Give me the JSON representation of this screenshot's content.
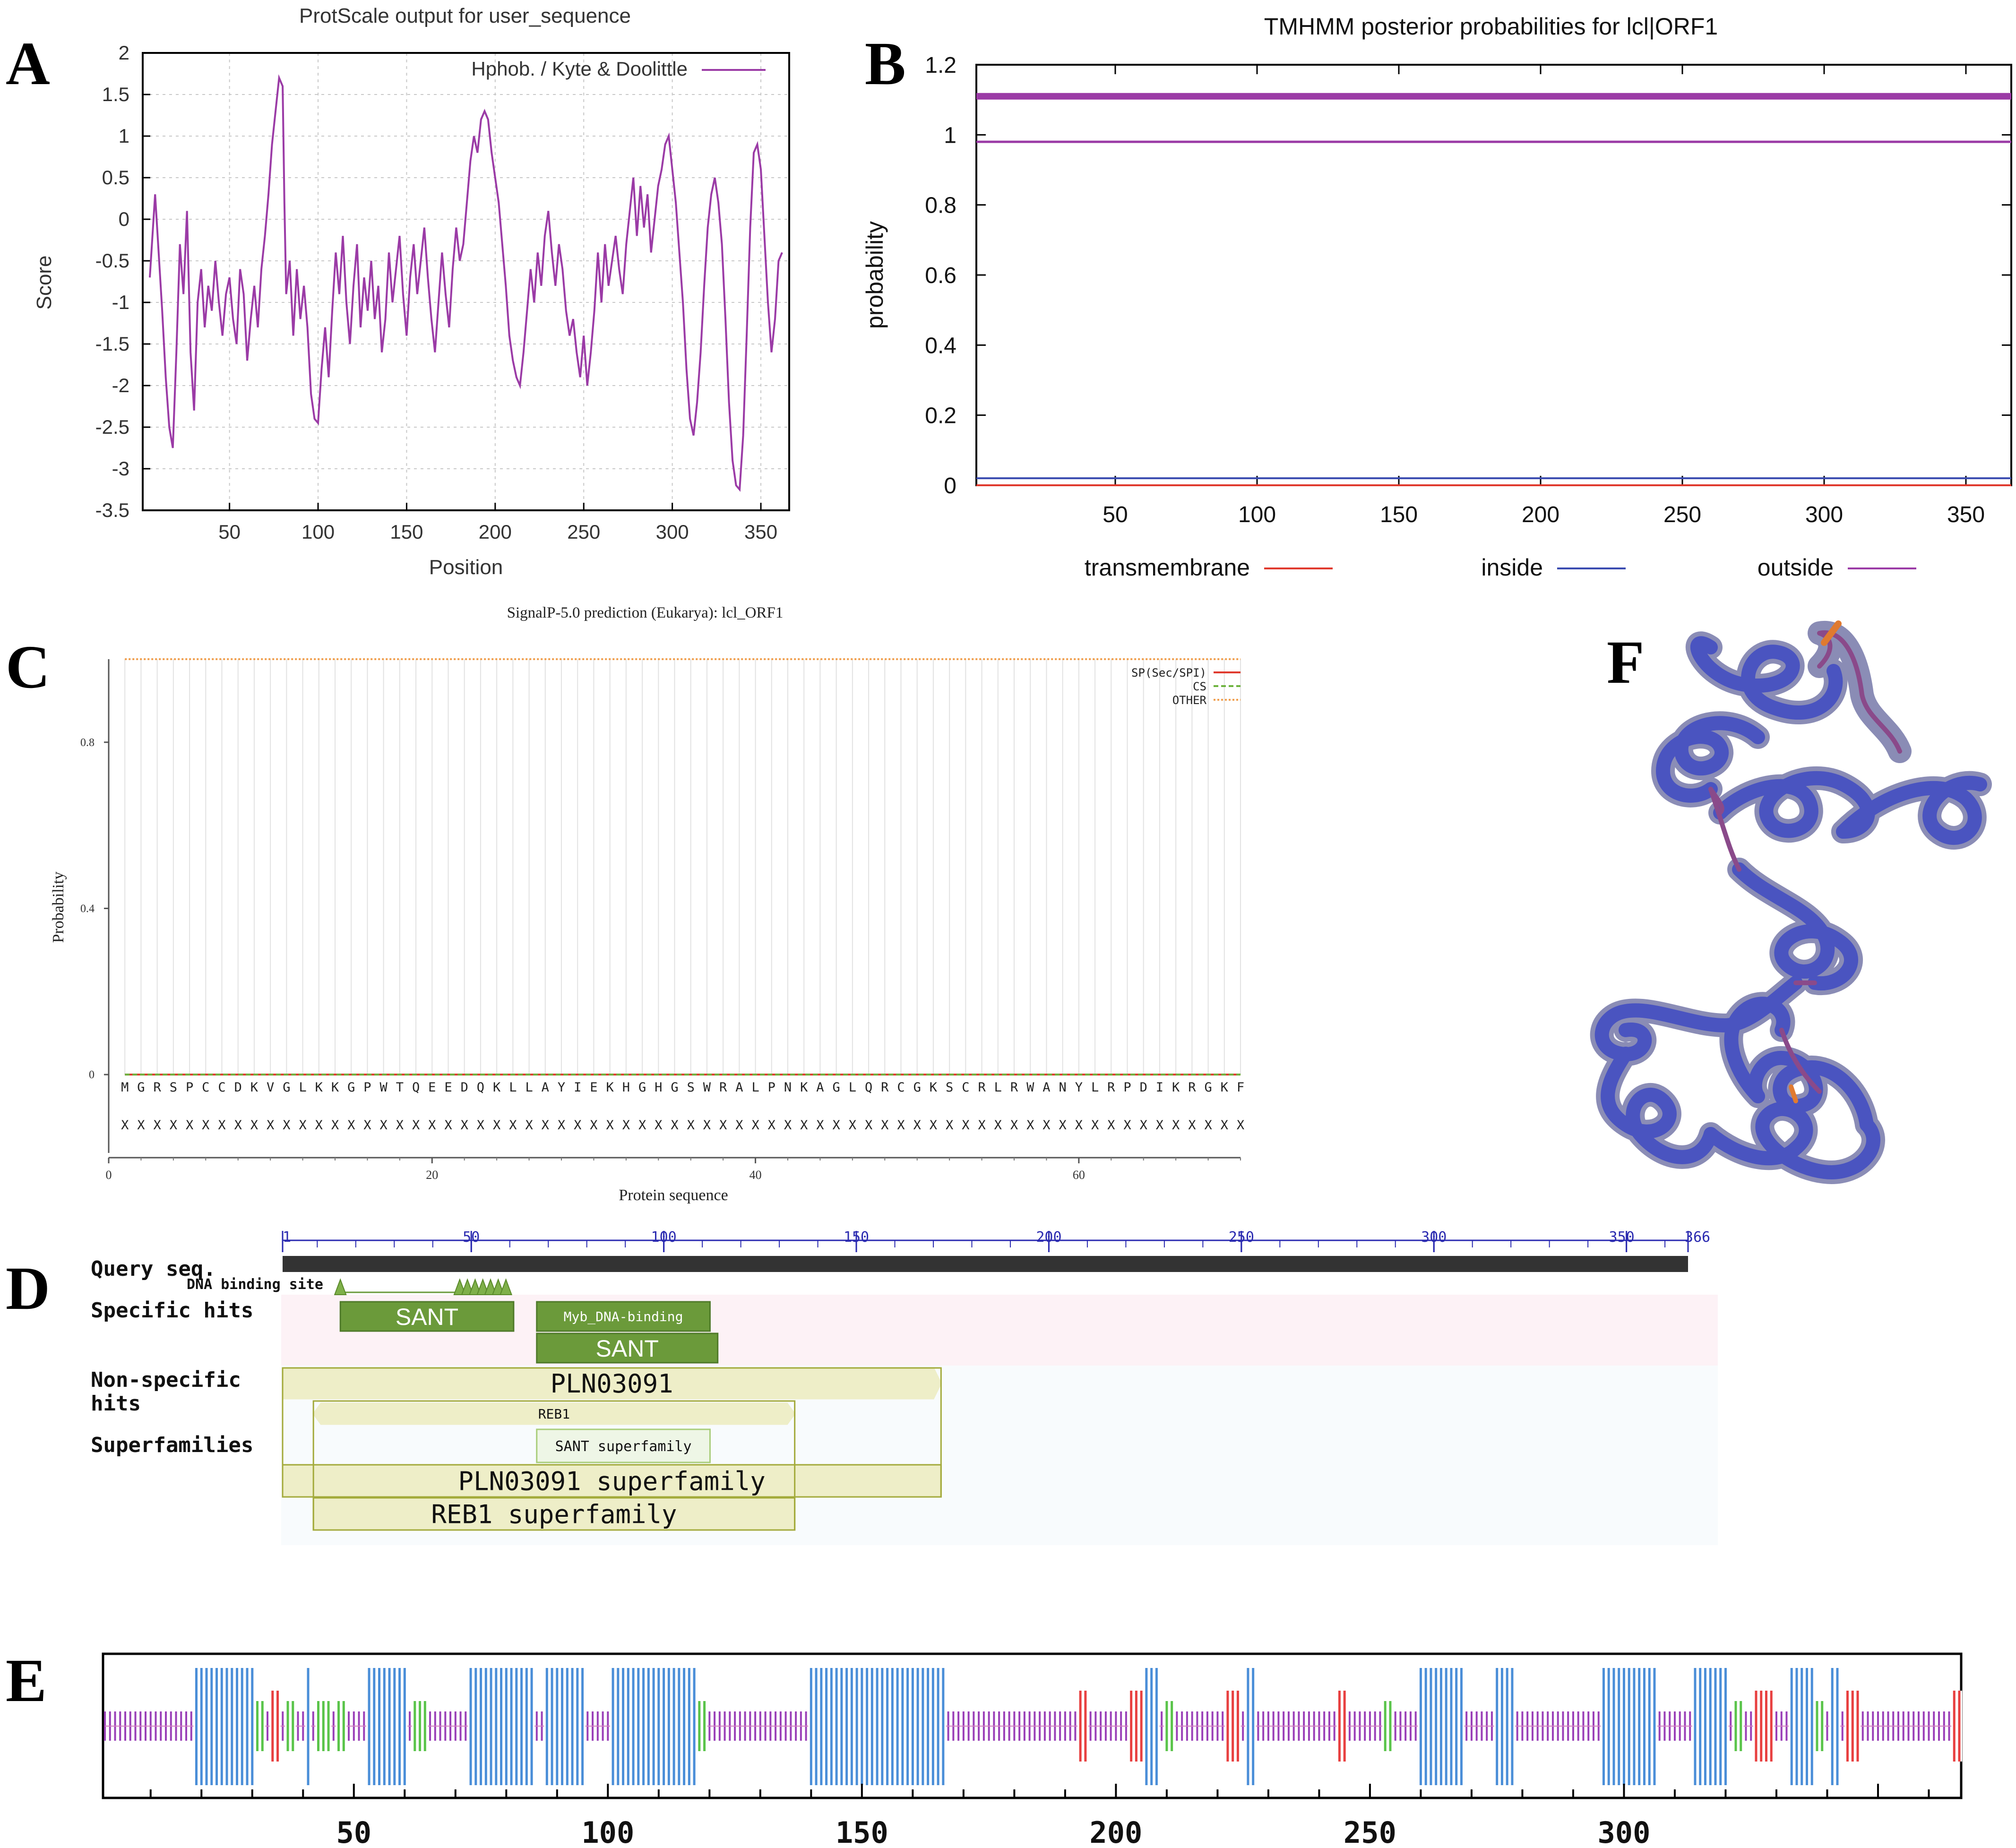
{
  "figure": {
    "panel_letters": [
      "A",
      "B",
      "C",
      "D",
      "E",
      "F"
    ],
    "colors": {
      "purple": "#9b3ba6",
      "blue": "#3a4bb0",
      "red": "#e03a2e",
      "green_light": "#6db33f",
      "orange": "#f0a050",
      "grid": "#c8c8c8",
      "sant_green": "#6b9a3a",
      "sant_green_light": "#a9cd7a",
      "domain_fill": "#eeeec8",
      "domain_stroke": "#a3aa3a",
      "e_blue": "#4a8ed8",
      "e_red": "#e84040",
      "e_green": "#5ac44a",
      "e_purple": "#9a40b8"
    }
  },
  "panel_a": {
    "chart_data": {
      "type": "line",
      "title": "ProtScale output for user_sequence",
      "xlabel": "Position",
      "ylabel": "Score",
      "legend": "Hphob. / Kyte & Doolittle",
      "xlim": [
        1,
        366
      ],
      "ylim": [
        -3.5,
        2
      ],
      "xticks": [
        50,
        100,
        150,
        200,
        250,
        300,
        350
      ],
      "yticks": [
        2,
        1.5,
        1,
        0.5,
        0,
        -0.5,
        -1,
        -1.5,
        -2,
        -2.5,
        -3,
        -3.5
      ],
      "ytick_labels": [
        "2",
        "1.5",
        "1",
        "0.5",
        "0",
        "-0.5",
        "-1",
        "-1.5",
        "-2",
        "-2.5",
        "-3",
        "-3.5"
      ],
      "series": [
        {
          "name": "Hphob. / Kyte & Doolittle",
          "x": [
            5,
            8,
            10,
            12,
            14,
            16,
            18,
            20,
            22,
            24,
            26,
            28,
            30,
            32,
            34,
            36,
            38,
            40,
            42,
            44,
            46,
            48,
            50,
            52,
            54,
            56,
            58,
            60,
            62,
            64,
            66,
            68,
            70,
            72,
            74,
            76,
            78,
            80,
            81,
            82,
            84,
            86,
            88,
            90,
            92,
            94,
            96,
            98,
            100,
            102,
            104,
            106,
            108,
            110,
            112,
            114,
            116,
            118,
            120,
            122,
            124,
            126,
            128,
            130,
            132,
            134,
            136,
            138,
            140,
            142,
            144,
            146,
            148,
            150,
            152,
            154,
            156,
            158,
            160,
            162,
            164,
            166,
            168,
            170,
            172,
            174,
            176,
            178,
            180,
            182,
            184,
            186,
            188,
            190,
            192,
            194,
            196,
            198,
            200,
            202,
            204,
            206,
            208,
            210,
            212,
            214,
            216,
            218,
            220,
            222,
            224,
            226,
            228,
            230,
            232,
            234,
            236,
            238,
            240,
            242,
            244,
            246,
            248,
            250,
            252,
            254,
            256,
            258,
            260,
            262,
            264,
            266,
            268,
            270,
            272,
            274,
            276,
            278,
            280,
            282,
            284,
            286,
            288,
            290,
            292,
            294,
            296,
            298,
            300,
            302,
            304,
            306,
            308,
            310,
            312,
            314,
            316,
            318,
            320,
            322,
            324,
            326,
            328,
            330,
            332,
            334,
            336,
            338,
            340,
            342,
            344,
            346,
            348,
            350,
            352,
            354,
            356,
            358,
            360,
            362
          ],
          "y": [
            -0.7,
            0.3,
            -0.4,
            -1.1,
            -1.9,
            -2.5,
            -2.75,
            -1.6,
            -0.3,
            -0.9,
            0.1,
            -1.6,
            -2.3,
            -1.0,
            -0.6,
            -1.3,
            -0.8,
            -1.1,
            -0.5,
            -1.0,
            -1.4,
            -0.9,
            -0.7,
            -1.2,
            -1.5,
            -0.6,
            -0.9,
            -1.7,
            -1.2,
            -0.8,
            -1.3,
            -0.6,
            -0.2,
            0.3,
            0.9,
            1.3,
            1.7,
            1.6,
            0.2,
            -0.9,
            -0.5,
            -1.4,
            -0.6,
            -1.2,
            -0.8,
            -1.3,
            -2.1,
            -2.4,
            -2.45,
            -1.8,
            -1.3,
            -1.9,
            -1.1,
            -0.4,
            -0.9,
            -0.2,
            -1.0,
            -1.5,
            -0.8,
            -0.3,
            -1.3,
            -0.7,
            -1.1,
            -0.5,
            -1.2,
            -0.8,
            -1.6,
            -1.2,
            -0.4,
            -1.0,
            -0.6,
            -0.2,
            -0.9,
            -1.4,
            -0.7,
            -0.3,
            -0.9,
            -0.5,
            -0.1,
            -0.7,
            -1.2,
            -1.6,
            -1.0,
            -0.4,
            -0.9,
            -1.3,
            -0.6,
            -0.1,
            -0.5,
            -0.3,
            0.2,
            0.7,
            1.0,
            0.8,
            1.2,
            1.3,
            1.2,
            0.8,
            0.5,
            0.2,
            -0.3,
            -0.8,
            -1.4,
            -1.7,
            -1.9,
            -2.0,
            -1.6,
            -1.1,
            -0.6,
            -1.0,
            -0.4,
            -0.8,
            -0.2,
            0.1,
            -0.4,
            -0.8,
            -0.3,
            -0.6,
            -1.1,
            -1.4,
            -1.2,
            -1.6,
            -1.9,
            -1.4,
            -2.0,
            -1.6,
            -1.1,
            -0.4,
            -1.0,
            -0.3,
            -0.8,
            -0.5,
            -0.2,
            -0.6,
            -0.9,
            -0.3,
            0.1,
            0.5,
            -0.2,
            0.4,
            -0.1,
            0.3,
            -0.4,
            0.0,
            0.4,
            0.6,
            0.9,
            1.0,
            0.6,
            0.2,
            -0.4,
            -1.0,
            -1.8,
            -2.4,
            -2.6,
            -2.2,
            -1.6,
            -0.8,
            -0.1,
            0.3,
            0.5,
            0.2,
            -0.3,
            -1.2,
            -2.2,
            -2.9,
            -3.2,
            -3.25,
            -2.6,
            -1.4,
            -0.1,
            0.8,
            0.9,
            0.6,
            -0.2,
            -1.0,
            -1.6,
            -1.2,
            -0.5,
            -0.4
          ]
        }
      ]
    }
  },
  "panel_b": {
    "chart_data": {
      "type": "line",
      "title": "TMHMM posterior probabilities for lcl|ORF1",
      "ylabel": "probability",
      "xlim": [
        1,
        366
      ],
      "ylim": [
        0,
        1.2
      ],
      "xticks": [
        50,
        100,
        150,
        200,
        250,
        300,
        350
      ],
      "yticks": [
        1.2,
        1,
        0.8,
        0.6,
        0.4,
        0.2,
        0
      ],
      "ytick_labels": [
        "1.2",
        "1",
        "0.8",
        "0.6",
        "0.4",
        "0.2",
        "0"
      ],
      "legend": [
        "transmembrane",
        "inside",
        "outside"
      ],
      "series": [
        {
          "name": "transmembrane",
          "x": [
            1,
            366
          ],
          "y": [
            0,
            0
          ]
        },
        {
          "name": "inside",
          "x": [
            1,
            366
          ],
          "y": [
            0.02,
            0.02
          ]
        },
        {
          "name": "outside",
          "x": [
            1,
            366
          ],
          "y": [
            0.98,
            0.98
          ]
        },
        {
          "name": "outside (bar)",
          "x": [
            1,
            366
          ],
          "y": [
            1.11,
            1.11
          ]
        }
      ]
    }
  },
  "panel_c": {
    "chart_data": {
      "type": "line",
      "title": "SignalP-5.0 prediction (Eukarya):  lcl_ORF1",
      "xlabel": "Protein sequence",
      "ylabel": "Probability",
      "xlim": [
        0,
        70
      ],
      "ylim": [
        -0.2,
        1.0
      ],
      "xticks": [
        0,
        20,
        40,
        60
      ],
      "yticks": [
        0.8,
        0.4,
        0
      ],
      "ytick_labels": [
        "0.8",
        "0.4",
        "0"
      ],
      "legend": [
        "SP(Sec/SPI)",
        "CS",
        "OTHER"
      ],
      "sequence": [
        "M",
        "G",
        "R",
        "S",
        "P",
        "C",
        "C",
        "D",
        "K",
        "V",
        "G",
        "L",
        "K",
        "K",
        "G",
        "P",
        "W",
        "T",
        "Q",
        "E",
        "E",
        "D",
        "Q",
        "K",
        "L",
        "L",
        "A",
        "Y",
        "I",
        "E",
        "K",
        "H",
        "G",
        "H",
        "G",
        "S",
        "W",
        "R",
        "A",
        "L",
        "P",
        "N",
        "K",
        "A",
        "G",
        "L",
        "Q",
        "R",
        "C",
        "G",
        "K",
        "S",
        "C",
        "R",
        "L",
        "R",
        "W",
        "A",
        "N",
        "Y",
        "L",
        "R",
        "P",
        "D",
        "I",
        "K",
        "R",
        "G",
        "K",
        "F"
      ],
      "annotation_char": "X",
      "series": [
        {
          "name": "SP(Sec/SPI)",
          "x": [
            1,
            70
          ],
          "y": [
            0,
            0
          ]
        },
        {
          "name": "CS",
          "x": [
            1,
            70
          ],
          "y": [
            0,
            0
          ]
        },
        {
          "name": "OTHER",
          "x": [
            1,
            70
          ],
          "y": [
            1.0,
            1.0
          ]
        }
      ]
    }
  },
  "panel_d": {
    "ruler_ticks": [
      1,
      50,
      100,
      150,
      200,
      250,
      300,
      350,
      366
    ],
    "ruler_labels": [
      "1",
      "50",
      "100",
      "150",
      "200",
      "250",
      "300",
      "350",
      "366"
    ],
    "row_labels": {
      "query": "Query seq.",
      "dna": "DNA binding site",
      "specific": "Specific hits",
      "nonspecific": "Non-specific hits",
      "superfamilies": "Superfamilies"
    },
    "domains": {
      "sant1": {
        "label": "SANT",
        "start": 16,
        "end": 61
      },
      "myb": {
        "label": "Myb_DNA-binding",
        "start": 67,
        "end": 112
      },
      "sant2": {
        "label": "SANT",
        "start": 67,
        "end": 114
      },
      "pln": {
        "label": "PLN03091",
        "start": 1,
        "end": 172
      },
      "reb1": {
        "label": "REB1",
        "start": 9,
        "end": 134
      },
      "sant_sf": {
        "label": "SANT superfamily",
        "start": 67,
        "end": 112
      },
      "pln_sf": {
        "label": "PLN03091 superfamily",
        "start": 1,
        "end": 172
      },
      "reb1_sf": {
        "label": "REB1 superfamily",
        "start": 9,
        "end": 134
      }
    },
    "dna_sites": [
      16,
      47,
      49,
      51,
      53,
      55,
      57,
      59
    ]
  },
  "panel_e": {
    "xticks": [
      50,
      100,
      150,
      200,
      250,
      300
    ],
    "xtick_labels": [
      "50",
      "100",
      "150",
      "200",
      "250",
      "300"
    ],
    "xlim": [
      1,
      366
    ],
    "segments": [
      {
        "type": "helix",
        "start": 19,
        "end": 30
      },
      {
        "type": "strand",
        "start": 31,
        "end": 32
      },
      {
        "type": "sheet",
        "start": 34,
        "end": 35
      },
      {
        "type": "strand",
        "start": 37,
        "end": 38
      },
      {
        "type": "helix",
        "start": 41,
        "end": 41
      },
      {
        "type": "strand",
        "start": 43,
        "end": 45
      },
      {
        "type": "strand",
        "start": 47,
        "end": 48
      },
      {
        "type": "helix",
        "start": 53,
        "end": 60
      },
      {
        "type": "strand",
        "start": 62,
        "end": 64
      },
      {
        "type": "helix",
        "start": 73,
        "end": 85
      },
      {
        "type": "helix",
        "start": 88,
        "end": 95
      },
      {
        "type": "helix",
        "start": 101,
        "end": 117
      },
      {
        "type": "strand",
        "start": 118,
        "end": 119
      },
      {
        "type": "helix",
        "start": 140,
        "end": 166
      },
      {
        "type": "sheet",
        "start": 193,
        "end": 194
      },
      {
        "type": "sheet",
        "start": 203,
        "end": 205
      },
      {
        "type": "helix",
        "start": 206,
        "end": 208
      },
      {
        "type": "strand",
        "start": 210,
        "end": 211
      },
      {
        "type": "sheet",
        "start": 222,
        "end": 224
      },
      {
        "type": "helix",
        "start": 226,
        "end": 227
      },
      {
        "type": "sheet",
        "start": 244,
        "end": 245
      },
      {
        "type": "strand",
        "start": 253,
        "end": 254
      },
      {
        "type": "helix",
        "start": 260,
        "end": 268
      },
      {
        "type": "helix",
        "start": 275,
        "end": 278
      },
      {
        "type": "helix",
        "start": 296,
        "end": 306
      },
      {
        "type": "helix",
        "start": 314,
        "end": 320
      },
      {
        "type": "strand",
        "start": 322,
        "end": 323
      },
      {
        "type": "sheet",
        "start": 326,
        "end": 329
      },
      {
        "type": "helix",
        "start": 333,
        "end": 337
      },
      {
        "type": "strand",
        "start": 338,
        "end": 339
      },
      {
        "type": "helix",
        "start": 341,
        "end": 342
      },
      {
        "type": "sheet",
        "start": 344,
        "end": 346
      },
      {
        "type": "sheet",
        "start": 365,
        "end": 366
      }
    ]
  }
}
